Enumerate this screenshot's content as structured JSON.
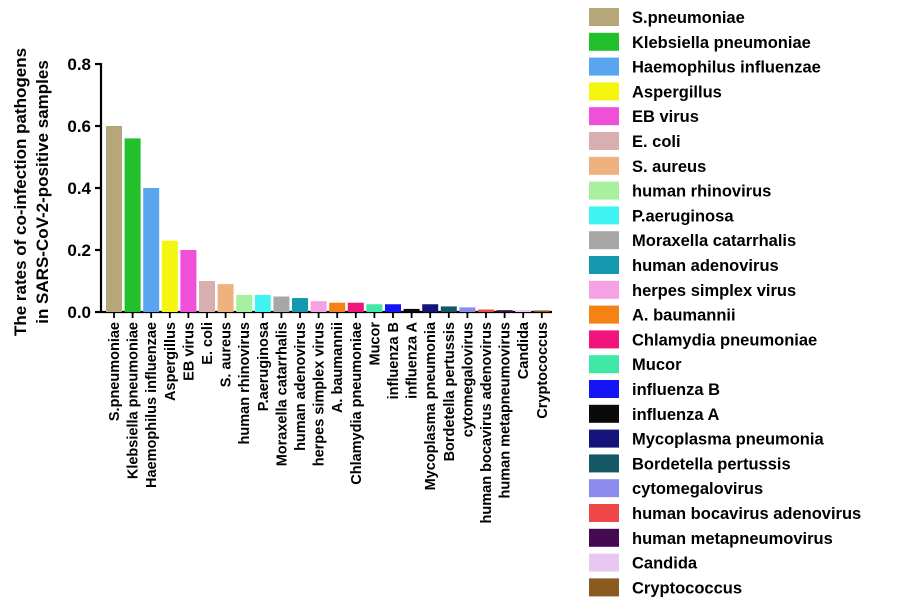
{
  "chart_data": {
    "type": "bar",
    "title": "",
    "xlabel": "",
    "ylabel_lines": [
      "The rates of  co-infection pathogens",
      "in SARS-CoV-2-positive samples"
    ],
    "ylim": [
      0,
      0.8
    ],
    "yticks": [
      "0.0",
      "0.2",
      "0.4",
      "0.6",
      "0.8"
    ],
    "ytick_values": [
      0,
      0.2,
      0.4,
      0.6,
      0.8
    ],
    "grid": false,
    "legend_position": "right",
    "categories": [
      "S.pneumoniae",
      "Klebsiella pneumoniae",
      "Haemophilus influenzae",
      "Aspergillus",
      "EB virus",
      "E. coli",
      "S. aureus",
      "human rhinovirus",
      "P.aeruginosa",
      "Moraxella catarrhalis",
      "human adenovirus",
      "herpes simplex virus",
      "A. baumannii",
      "Chlamydia pneumoniae",
      "Mucor",
      "influenza B",
      "influenza A",
      "Mycoplasma pneumonia",
      "Bordetella pertussis",
      "cytomegalovirus",
      "human bocavirus adenovirus",
      "human metapneumovirus",
      "Candida",
      "Cryptococcus"
    ],
    "values": [
      0.6,
      0.56,
      0.4,
      0.23,
      0.2,
      0.1,
      0.09,
      0.055,
      0.055,
      0.05,
      0.045,
      0.035,
      0.03,
      0.03,
      0.025,
      0.025,
      0.01,
      0.025,
      0.018,
      0.015,
      0.008,
      0.006,
      0.006,
      0.005
    ],
    "legend": [
      "S.pneumoniae",
      "Klebsiella pneumoniae",
      "Haemophilus influenzae",
      "Aspergillus",
      "EB virus",
      "E. coli",
      "S. aureus",
      "human rhinovirus",
      "P.aeruginosa",
      "Moraxella catarrhalis",
      "human adenovirus",
      "herpes simplex virus",
      "A. baumannii",
      "Chlamydia pneumoniae",
      "Mucor",
      "influenza B",
      "influenza A",
      "Mycoplasma pneumonia",
      "Bordetella pertussis",
      "cytomegalovirus",
      "human bocavirus adenovirus",
      "human metapneumovirus",
      "Candida",
      "Cryptococcus"
    ],
    "colors": [
      "#b5a77a",
      "#22c02a",
      "#5aa5f0",
      "#f5f512",
      "#f050d8",
      "#d9aeb0",
      "#edb27e",
      "#a6f0a0",
      "#40f4f4",
      "#a7a7a7",
      "#1498ae",
      "#f5a2e4",
      "#f58214",
      "#f0147c",
      "#40e8a8",
      "#1414f5",
      "#0a0a0a",
      "#14147a",
      "#145866",
      "#8c8ced",
      "#ef4747",
      "#460a50",
      "#e8c8f0",
      "#8a5a1e"
    ]
  }
}
